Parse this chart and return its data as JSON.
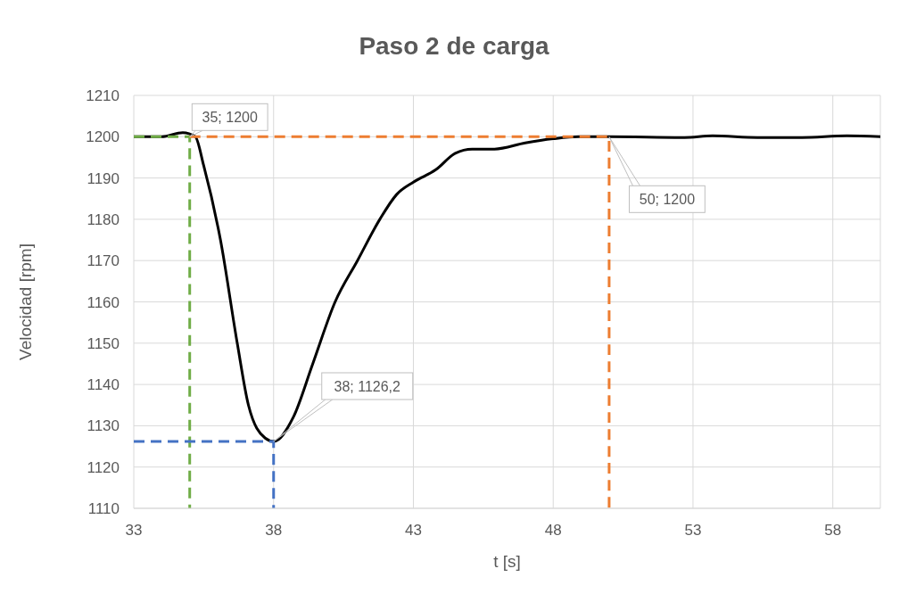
{
  "chart_data": {
    "type": "line",
    "title": "Paso 2 de carga",
    "xlabel": "t [s]",
    "ylabel": "Velocidad  [rpm]",
    "xlim": [
      33,
      59.7
    ],
    "xticks": [
      33,
      38,
      43,
      48,
      53,
      58
    ],
    "ylim": [
      1110,
      1210
    ],
    "yticks": [
      1110,
      1120,
      1130,
      1140,
      1150,
      1160,
      1170,
      1180,
      1190,
      1200,
      1210
    ],
    "grid": true,
    "legend": false,
    "marker": "none",
    "series": [
      {
        "color": "#000000",
        "line_style": "solid",
        "x": [
          33,
          34,
          34.75,
          35.2,
          35.5,
          36.1,
          36.7,
          37.1,
          37.7,
          38,
          38.7,
          39.4,
          40.2,
          41,
          41.8,
          42.4,
          43,
          43.8,
          44.5,
          45.1,
          45.9,
          47,
          48,
          48.9,
          50,
          52.7,
          53.7,
          55.3,
          56.9,
          58.5,
          59.7
        ],
        "values": [
          1200,
          1200,
          1201,
          1200,
          1193,
          1175,
          1150,
          1135,
          1127,
          1126.2,
          1132,
          1145,
          1160,
          1170,
          1180,
          1186,
          1189,
          1192,
          1196,
          1197,
          1197,
          1198.5,
          1199.5,
          1200,
          1200,
          1199.8,
          1200.2,
          1199.8,
          1199.8,
          1200.2,
          1200
        ]
      },
      {
        "color": "#70ad47",
        "line_style": "dashed",
        "x": [
          33,
          35,
          35
        ],
        "values": [
          1200,
          1200,
          1110
        ]
      },
      {
        "color": "#4472c4",
        "line_style": "dashed",
        "x": [
          33,
          38,
          38
        ],
        "values": [
          1126.2,
          1126.2,
          1110
        ]
      },
      {
        "color": "#ed7d31",
        "line_style": "dashed",
        "x": [
          35,
          50,
          50
        ],
        "values": [
          1200,
          1200,
          1110
        ]
      }
    ],
    "annotations": [
      {
        "text": "35; 1200",
        "x": 35,
        "y": 1200
      },
      {
        "text": "38; 1126,2",
        "x": 38,
        "y": 1126.2
      },
      {
        "text": "50; 1200",
        "x": 50,
        "y": 1200
      }
    ]
  }
}
